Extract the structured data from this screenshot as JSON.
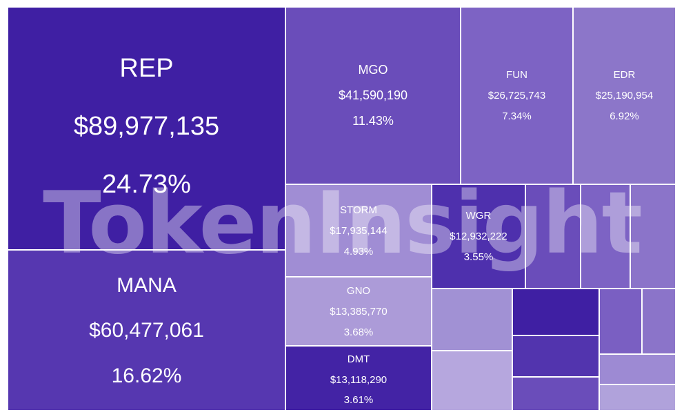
{
  "watermark": "TokenInsight",
  "chart_data": {
    "type": "treemap",
    "cells": [
      {
        "name": "REP",
        "value": 89977135,
        "value_label": "$89,977,135",
        "share_label": "24.73%",
        "color": "#3f1fa3"
      },
      {
        "name": "MANA",
        "value": 60477061,
        "value_label": "$60,477,061",
        "share_label": "16.62%",
        "color": "#5637b0"
      },
      {
        "name": "MGO",
        "value": 41590190,
        "value_label": "$41,590,190",
        "share_label": "11.43%",
        "color": "#6a4dba"
      },
      {
        "name": "FUN",
        "value": 26725743,
        "value_label": "$26,725,743",
        "share_label": "7.34%",
        "color": "#7d63c4"
      },
      {
        "name": "EDR",
        "value": 25190954,
        "value_label": "$25,190,954",
        "share_label": "6.92%",
        "color": "#8c76c9"
      },
      {
        "name": "STORM",
        "value": 17935144,
        "value_label": "$17,935,144",
        "share_label": "4.93%",
        "color": "#a08dd4"
      },
      {
        "name": "WGR",
        "value": 12932222,
        "value_label": "$12,932,222",
        "share_label": "3.55%",
        "color": "#4e30ad"
      },
      {
        "name": "GNO",
        "value": 13385770,
        "value_label": "$13,385,770",
        "share_label": "3.68%",
        "color": "#ac9bd8"
      },
      {
        "name": "DMT",
        "value": 13118290,
        "value_label": "$13,118,290",
        "share_label": "3.61%",
        "color": "#4323a5"
      },
      {
        "name": "",
        "value": null,
        "value_label": "",
        "share_label": "",
        "color": "#6a4dba"
      },
      {
        "name": "",
        "value": null,
        "value_label": "",
        "share_label": "",
        "color": "#7d63c4"
      },
      {
        "name": "",
        "value": null,
        "value_label": "",
        "share_label": "",
        "color": "#8b74c9"
      },
      {
        "name": "",
        "value": null,
        "value_label": "",
        "share_label": "",
        "color": "#a191d4"
      },
      {
        "name": "",
        "value": null,
        "value_label": "",
        "share_label": "",
        "color": "#b6a7de"
      },
      {
        "name": "",
        "value": null,
        "value_label": "",
        "share_label": "",
        "color": "#3f1fa3"
      },
      {
        "name": "",
        "value": null,
        "value_label": "",
        "share_label": "",
        "color": "#5234ae"
      },
      {
        "name": "",
        "value": null,
        "value_label": "",
        "share_label": "",
        "color": "#6a4dba"
      },
      {
        "name": "",
        "value": null,
        "value_label": "",
        "share_label": "",
        "color": "#7a5fc2"
      },
      {
        "name": "",
        "value": null,
        "value_label": "",
        "share_label": "",
        "color": "#8b74c9"
      },
      {
        "name": "",
        "value": null,
        "value_label": "",
        "share_label": "",
        "color": "#9d8ad3"
      },
      {
        "name": "",
        "value": null,
        "value_label": "",
        "share_label": "",
        "color": "#b0a2db"
      }
    ]
  }
}
